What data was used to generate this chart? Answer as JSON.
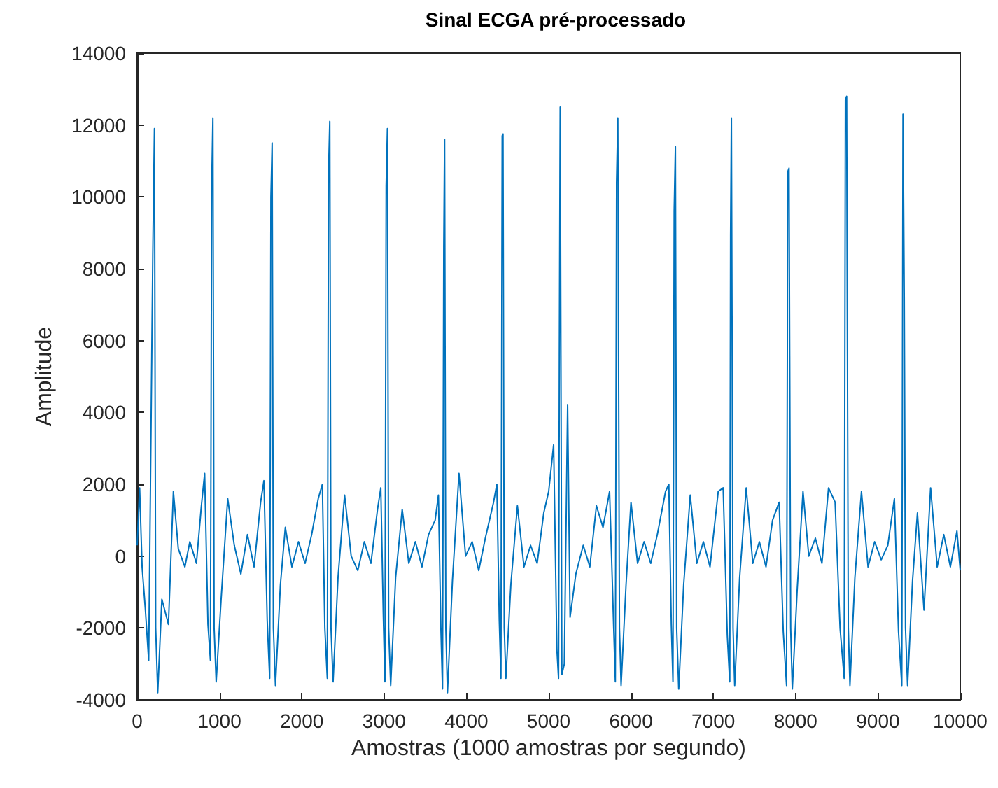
{
  "chart_data": {
    "type": "line",
    "title": "Sinal ECGA pré-processado",
    "xlabel": "Amostras (1000 amostras por segundo)",
    "ylabel": "Amplitude",
    "xlim": [
      0,
      10000
    ],
    "xticks": [
      0,
      1000,
      2000,
      3000,
      4000,
      5000,
      6000,
      7000,
      8000,
      9000,
      10000
    ],
    "ylim": [
      -4000,
      14000
    ],
    "yticks": [
      -4000,
      -2000,
      0,
      2000,
      4000,
      6000,
      8000,
      10000,
      12000,
      14000
    ],
    "grid": false,
    "marker": "none",
    "line_style": "solid",
    "series": [
      {
        "color": "#0072bd",
        "x": [
          0,
          30,
          60,
          100,
          140,
          190,
          210,
          225,
          250,
          300,
          380,
          440,
          500,
          580,
          640,
          720,
          780,
          820,
          860,
          890,
          905,
          920,
          935,
          960,
          1020,
          1100,
          1180,
          1260,
          1340,
          1420,
          1500,
          1540,
          1580,
          1610,
          1625,
          1640,
          1655,
          1680,
          1740,
          1800,
          1880,
          1960,
          2040,
          2120,
          2200,
          2250,
          2280,
          2310,
          2325,
          2340,
          2355,
          2380,
          2440,
          2520,
          2600,
          2680,
          2760,
          2840,
          2920,
          2960,
          2990,
          3010,
          3025,
          3040,
          3055,
          3080,
          3140,
          3220,
          3300,
          3380,
          3460,
          3540,
          3620,
          3660,
          3690,
          3710,
          3725,
          3735,
          3750,
          3770,
          3830,
          3910,
          3990,
          4070,
          4150,
          4230,
          4330,
          4370,
          4400,
          4420,
          4435,
          4445,
          4460,
          4480,
          4540,
          4620,
          4700,
          4780,
          4860,
          4940,
          5000,
          5060,
          5100,
          5120,
          5130,
          5140,
          5160,
          5190,
          5230,
          5260,
          5330,
          5420,
          5500,
          5580,
          5660,
          5740,
          5790,
          5810,
          5825,
          5840,
          5860,
          5880,
          5940,
          6000,
          6080,
          6160,
          6240,
          6320,
          6420,
          6460,
          6490,
          6510,
          6525,
          6540,
          6555,
          6580,
          6640,
          6720,
          6800,
          6880,
          6960,
          7060,
          7120,
          7170,
          7200,
          7210,
          7220,
          7240,
          7260,
          7320,
          7400,
          7480,
          7560,
          7640,
          7720,
          7800,
          7850,
          7890,
          7905,
          7920,
          7940,
          7960,
          8020,
          8090,
          8160,
          8240,
          8320,
          8400,
          8480,
          8540,
          8590,
          8605,
          8620,
          8640,
          8660,
          8720,
          8800,
          8880,
          8960,
          9040,
          9120,
          9200,
          9250,
          9290,
          9305,
          9320,
          9335,
          9360,
          9420,
          9480,
          9560,
          9640,
          9720,
          9800,
          9880,
          9960,
          10000
        ],
        "values": [
          300,
          1900,
          -300,
          -1500,
          -2900,
          8400,
          11900,
          -2000,
          -3800,
          -1200,
          -1900,
          1800,
          200,
          -300,
          400,
          -200,
          1400,
          2300,
          -1900,
          -2900,
          10200,
          12200,
          -2000,
          -3500,
          -1200,
          1600,
          300,
          -500,
          600,
          -300,
          1500,
          2100,
          -1800,
          -3400,
          10000,
          11500,
          -2000,
          -3600,
          -800,
          800,
          -300,
          400,
          -200,
          600,
          1600,
          2000,
          -2000,
          -3400,
          10700,
          12100,
          -2000,
          -3500,
          -600,
          1700,
          0,
          -400,
          400,
          -200,
          1300,
          1900,
          -1600,
          -3500,
          10300,
          11900,
          -2000,
          -3600,
          -600,
          1300,
          -200,
          400,
          -300,
          600,
          1000,
          1700,
          -2000,
          -3700,
          8600,
          11600,
          -2000,
          -3800,
          -700,
          2300,
          0,
          400,
          -400,
          500,
          1500,
          2000,
          -1800,
          -3400,
          11700,
          11750,
          -2000,
          -3400,
          -800,
          1400,
          -300,
          300,
          -200,
          1200,
          1800,
          3100,
          -2600,
          -3400,
          5700,
          12500,
          -3300,
          -3000,
          4200,
          -1700,
          -500,
          300,
          -300,
          1400,
          800,
          1800,
          -2000,
          -3500,
          10400,
          12200,
          -2000,
          -3600,
          -800,
          1500,
          -200,
          400,
          -200,
          600,
          1800,
          2000,
          -1900,
          -3500,
          9600,
          11400,
          -2000,
          -3700,
          -800,
          1700,
          -200,
          400,
          -300,
          1800,
          1900,
          -2200,
          -3500,
          8900,
          12200,
          -2000,
          -3600,
          -600,
          1900,
          -200,
          400,
          -300,
          1000,
          1500,
          -2100,
          -3600,
          10700,
          10800,
          -2000,
          -3700,
          -900,
          1800,
          0,
          500,
          -200,
          1900,
          1500,
          -2000,
          -3400,
          12700,
          12800,
          -2000,
          -3600,
          -600,
          1800,
          -300,
          400,
          -100,
          300,
          1600,
          -2100,
          -3600,
          12300,
          7200,
          -2000,
          -3600,
          -700,
          1200,
          -1500,
          1900,
          -300,
          600,
          -300,
          700,
          -400
        ]
      }
    ]
  }
}
